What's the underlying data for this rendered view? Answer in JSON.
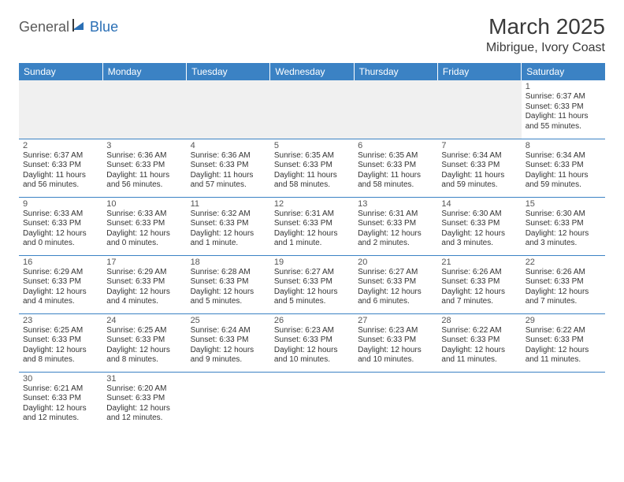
{
  "logo": {
    "text1": "General",
    "text2": "Blue"
  },
  "title": "March 2025",
  "location": "Mibrigue, Ivory Coast",
  "colors": {
    "header_bg": "#3b82c4",
    "header_text": "#ffffff",
    "grid_line": "#3b82c4",
    "logo_gray": "#5a5a5a",
    "logo_blue": "#2a6fb5",
    "body_text": "#333333",
    "bg": "#ffffff"
  },
  "weekdays": [
    "Sunday",
    "Monday",
    "Tuesday",
    "Wednesday",
    "Thursday",
    "Friday",
    "Saturday"
  ],
  "weeks": [
    [
      null,
      null,
      null,
      null,
      null,
      null,
      {
        "d": "1",
        "sr": "Sunrise: 6:37 AM",
        "ss": "Sunset: 6:33 PM",
        "dl": "Daylight: 11 hours and 55 minutes."
      }
    ],
    [
      {
        "d": "2",
        "sr": "Sunrise: 6:37 AM",
        "ss": "Sunset: 6:33 PM",
        "dl": "Daylight: 11 hours and 56 minutes."
      },
      {
        "d": "3",
        "sr": "Sunrise: 6:36 AM",
        "ss": "Sunset: 6:33 PM",
        "dl": "Daylight: 11 hours and 56 minutes."
      },
      {
        "d": "4",
        "sr": "Sunrise: 6:36 AM",
        "ss": "Sunset: 6:33 PM",
        "dl": "Daylight: 11 hours and 57 minutes."
      },
      {
        "d": "5",
        "sr": "Sunrise: 6:35 AM",
        "ss": "Sunset: 6:33 PM",
        "dl": "Daylight: 11 hours and 58 minutes."
      },
      {
        "d": "6",
        "sr": "Sunrise: 6:35 AM",
        "ss": "Sunset: 6:33 PM",
        "dl": "Daylight: 11 hours and 58 minutes."
      },
      {
        "d": "7",
        "sr": "Sunrise: 6:34 AM",
        "ss": "Sunset: 6:33 PM",
        "dl": "Daylight: 11 hours and 59 minutes."
      },
      {
        "d": "8",
        "sr": "Sunrise: 6:34 AM",
        "ss": "Sunset: 6:33 PM",
        "dl": "Daylight: 11 hours and 59 minutes."
      }
    ],
    [
      {
        "d": "9",
        "sr": "Sunrise: 6:33 AM",
        "ss": "Sunset: 6:33 PM",
        "dl": "Daylight: 12 hours and 0 minutes."
      },
      {
        "d": "10",
        "sr": "Sunrise: 6:33 AM",
        "ss": "Sunset: 6:33 PM",
        "dl": "Daylight: 12 hours and 0 minutes."
      },
      {
        "d": "11",
        "sr": "Sunrise: 6:32 AM",
        "ss": "Sunset: 6:33 PM",
        "dl": "Daylight: 12 hours and 1 minute."
      },
      {
        "d": "12",
        "sr": "Sunrise: 6:31 AM",
        "ss": "Sunset: 6:33 PM",
        "dl": "Daylight: 12 hours and 1 minute."
      },
      {
        "d": "13",
        "sr": "Sunrise: 6:31 AM",
        "ss": "Sunset: 6:33 PM",
        "dl": "Daylight: 12 hours and 2 minutes."
      },
      {
        "d": "14",
        "sr": "Sunrise: 6:30 AM",
        "ss": "Sunset: 6:33 PM",
        "dl": "Daylight: 12 hours and 3 minutes."
      },
      {
        "d": "15",
        "sr": "Sunrise: 6:30 AM",
        "ss": "Sunset: 6:33 PM",
        "dl": "Daylight: 12 hours and 3 minutes."
      }
    ],
    [
      {
        "d": "16",
        "sr": "Sunrise: 6:29 AM",
        "ss": "Sunset: 6:33 PM",
        "dl": "Daylight: 12 hours and 4 minutes."
      },
      {
        "d": "17",
        "sr": "Sunrise: 6:29 AM",
        "ss": "Sunset: 6:33 PM",
        "dl": "Daylight: 12 hours and 4 minutes."
      },
      {
        "d": "18",
        "sr": "Sunrise: 6:28 AM",
        "ss": "Sunset: 6:33 PM",
        "dl": "Daylight: 12 hours and 5 minutes."
      },
      {
        "d": "19",
        "sr": "Sunrise: 6:27 AM",
        "ss": "Sunset: 6:33 PM",
        "dl": "Daylight: 12 hours and 5 minutes."
      },
      {
        "d": "20",
        "sr": "Sunrise: 6:27 AM",
        "ss": "Sunset: 6:33 PM",
        "dl": "Daylight: 12 hours and 6 minutes."
      },
      {
        "d": "21",
        "sr": "Sunrise: 6:26 AM",
        "ss": "Sunset: 6:33 PM",
        "dl": "Daylight: 12 hours and 7 minutes."
      },
      {
        "d": "22",
        "sr": "Sunrise: 6:26 AM",
        "ss": "Sunset: 6:33 PM",
        "dl": "Daylight: 12 hours and 7 minutes."
      }
    ],
    [
      {
        "d": "23",
        "sr": "Sunrise: 6:25 AM",
        "ss": "Sunset: 6:33 PM",
        "dl": "Daylight: 12 hours and 8 minutes."
      },
      {
        "d": "24",
        "sr": "Sunrise: 6:25 AM",
        "ss": "Sunset: 6:33 PM",
        "dl": "Daylight: 12 hours and 8 minutes."
      },
      {
        "d": "25",
        "sr": "Sunrise: 6:24 AM",
        "ss": "Sunset: 6:33 PM",
        "dl": "Daylight: 12 hours and 9 minutes."
      },
      {
        "d": "26",
        "sr": "Sunrise: 6:23 AM",
        "ss": "Sunset: 6:33 PM",
        "dl": "Daylight: 12 hours and 10 minutes."
      },
      {
        "d": "27",
        "sr": "Sunrise: 6:23 AM",
        "ss": "Sunset: 6:33 PM",
        "dl": "Daylight: 12 hours and 10 minutes."
      },
      {
        "d": "28",
        "sr": "Sunrise: 6:22 AM",
        "ss": "Sunset: 6:33 PM",
        "dl": "Daylight: 12 hours and 11 minutes."
      },
      {
        "d": "29",
        "sr": "Sunrise: 6:22 AM",
        "ss": "Sunset: 6:33 PM",
        "dl": "Daylight: 12 hours and 11 minutes."
      }
    ],
    [
      {
        "d": "30",
        "sr": "Sunrise: 6:21 AM",
        "ss": "Sunset: 6:33 PM",
        "dl": "Daylight: 12 hours and 12 minutes."
      },
      {
        "d": "31",
        "sr": "Sunrise: 6:20 AM",
        "ss": "Sunset: 6:33 PM",
        "dl": "Daylight: 12 hours and 12 minutes."
      },
      null,
      null,
      null,
      null,
      null
    ]
  ]
}
